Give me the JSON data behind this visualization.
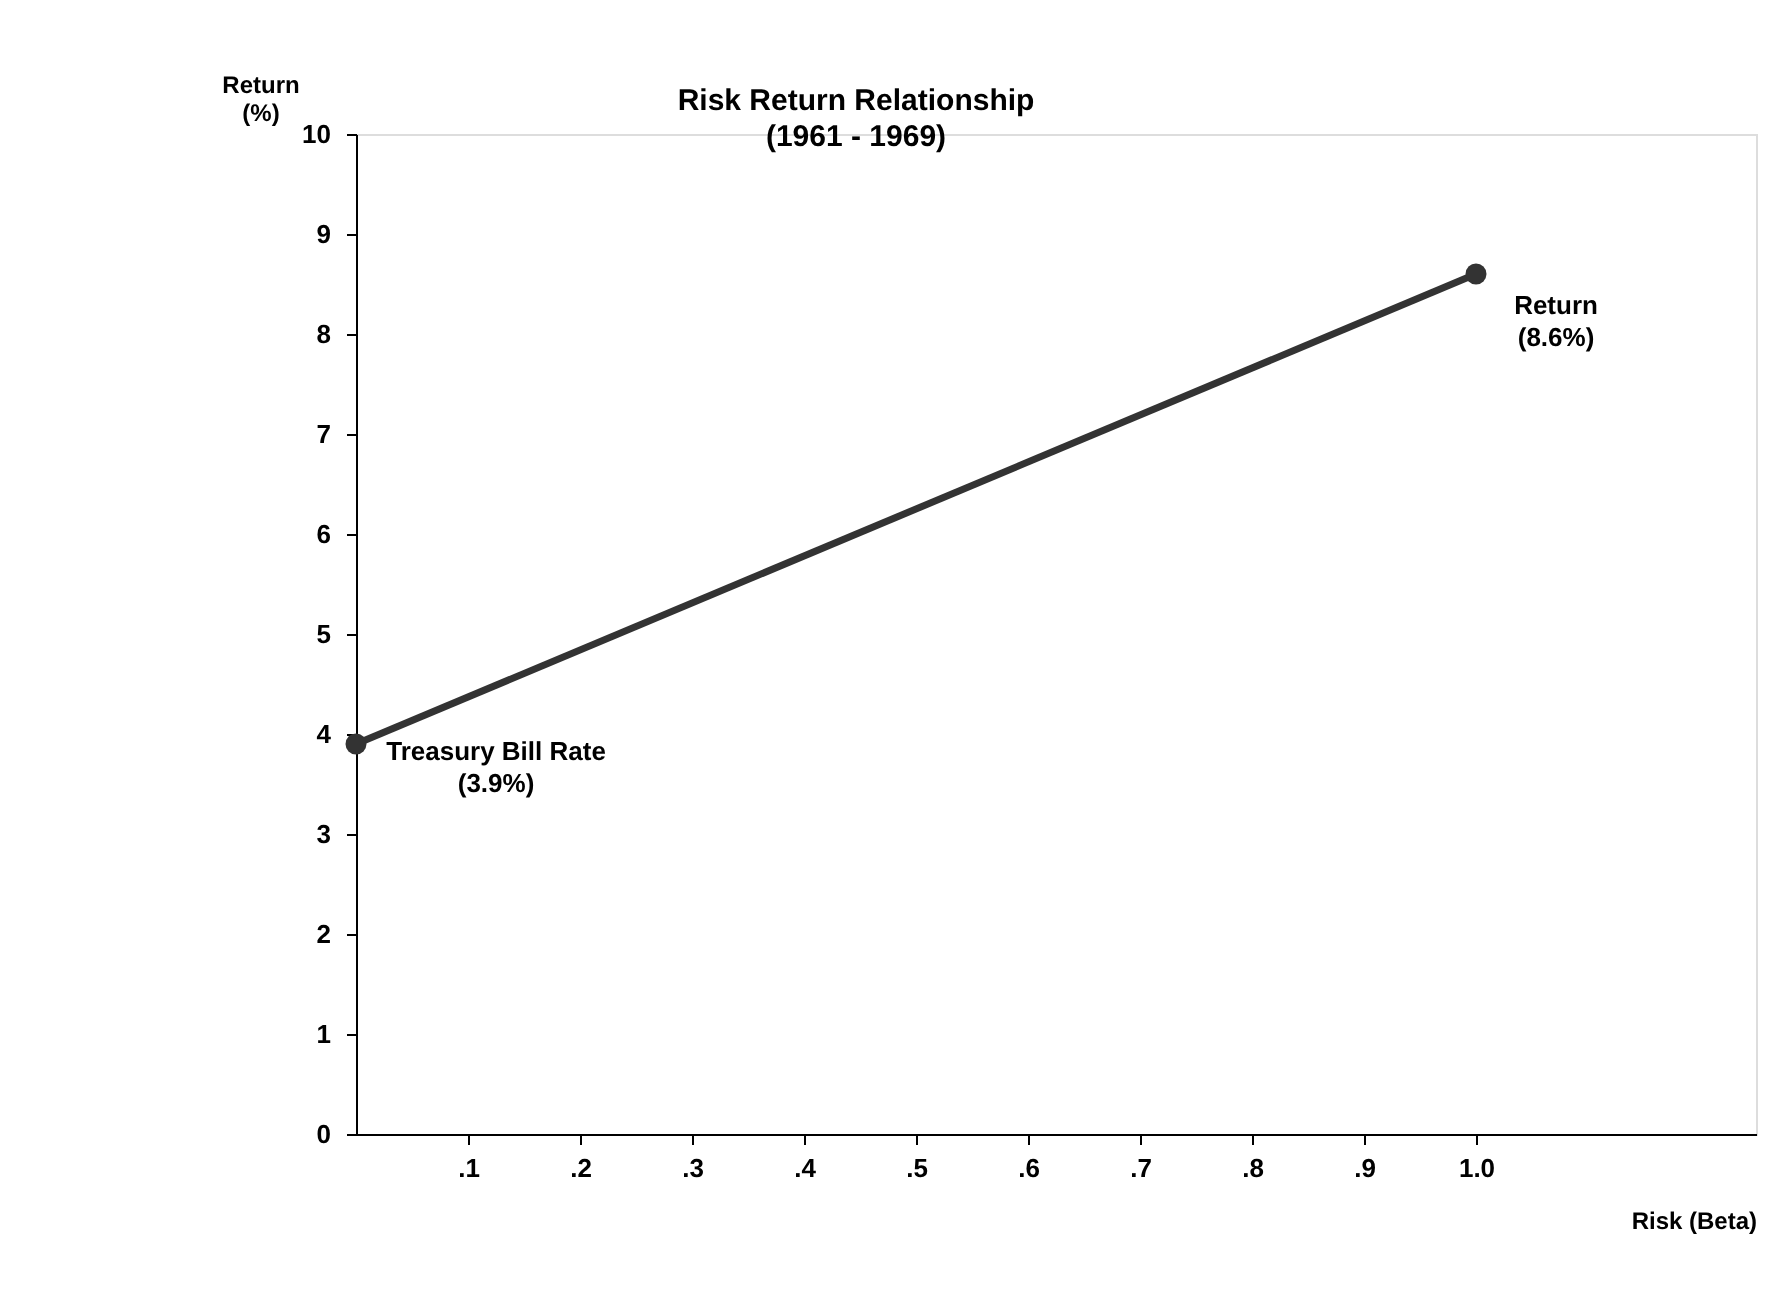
{
  "chart_data": {
    "type": "line",
    "title": "Risk Return Relationship",
    "subtitle": "(1961 - 1969)",
    "xlabel": "Risk (Beta)",
    "ylabel": "Return (%)",
    "x": [
      0,
      1.0
    ],
    "series": [
      {
        "color": "#333333",
        "values": [
          3.9,
          8.6
        ]
      }
    ],
    "marker": "circle",
    "line_style": "solid",
    "xlim": [
      0,
      1.25
    ],
    "xticks": [
      {
        "value": 0.1,
        "label": ".1"
      },
      {
        "value": 0.2,
        "label": ".2"
      },
      {
        "value": 0.3,
        "label": ".3"
      },
      {
        "value": 0.4,
        "label": ".4"
      },
      {
        "value": 0.5,
        "label": ".5"
      },
      {
        "value": 0.6,
        "label": ".6"
      },
      {
        "value": 0.7,
        "label": ".7"
      },
      {
        "value": 0.8,
        "label": ".8"
      },
      {
        "value": 0.9,
        "label": ".9"
      },
      {
        "value": 1.0,
        "label": "1.0"
      }
    ],
    "ylim": [
      0,
      10
    ],
    "yticks": [
      0,
      1,
      2,
      3,
      4,
      5,
      6,
      7,
      8,
      9,
      10
    ],
    "grid": false,
    "annotations": [
      {
        "text": "Treasury Bill Rate (3.9%)",
        "x": 0,
        "y": 3.9
      },
      {
        "text": "Return (8.6%)",
        "x": 1.0,
        "y": 8.6
      }
    ]
  }
}
